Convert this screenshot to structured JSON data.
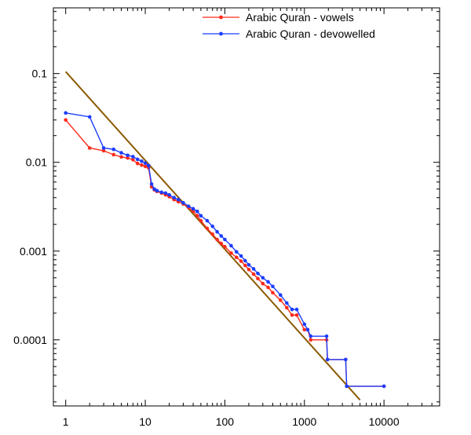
{
  "chart_data": {
    "type": "line",
    "title": "",
    "xlabel": "",
    "ylabel": "",
    "x_scale": "log",
    "y_scale": "log",
    "xlim": [
      0.7,
      50000
    ],
    "ylim": [
      1.8e-05,
      0.55
    ],
    "x_ticks": [
      {
        "value": 1,
        "label": "1"
      },
      {
        "value": 10,
        "label": "10"
      },
      {
        "value": 100,
        "label": "100"
      },
      {
        "value": 1000,
        "label": "1000"
      },
      {
        "value": 10000,
        "label": "10000"
      }
    ],
    "y_ticks": [
      {
        "value": 0.1,
        "label": "0.1"
      },
      {
        "value": 0.01,
        "label": "0.01"
      },
      {
        "value": 0.001,
        "label": "0.001"
      },
      {
        "value": 0.0001,
        "label": "0.0001"
      }
    ],
    "grid": false,
    "legend_position": "top-right",
    "series": [
      {
        "name": "Arabic Quran - vowels",
        "color": "#ff2a1a",
        "marker": "dot",
        "points": [
          [
            1,
            0.03
          ],
          [
            2,
            0.0145
          ],
          [
            3,
            0.0135
          ],
          [
            4,
            0.0122
          ],
          [
            5,
            0.0115
          ],
          [
            6,
            0.0112
          ],
          [
            7,
            0.0107
          ],
          [
            8,
            0.0097
          ],
          [
            9,
            0.0093
          ],
          [
            10,
            0.009
          ],
          [
            11,
            0.0087
          ],
          [
            12,
            0.0053
          ],
          [
            13,
            0.0049
          ],
          [
            14,
            0.0047
          ],
          [
            16,
            0.0045
          ],
          [
            18,
            0.0043
          ],
          [
            20,
            0.0041
          ],
          [
            23,
            0.0038
          ],
          [
            26,
            0.0036
          ],
          [
            30,
            0.0034
          ],
          [
            35,
            0.0031
          ],
          [
            40,
            0.0028
          ],
          [
            45,
            0.0025
          ],
          [
            50,
            0.0022
          ],
          [
            60,
            0.0018
          ],
          [
            70,
            0.00155
          ],
          [
            80,
            0.00135
          ],
          [
            90,
            0.00122
          ],
          [
            100,
            0.00112
          ],
          [
            120,
            0.00095
          ],
          [
            140,
            0.00085
          ],
          [
            160,
            0.00077
          ],
          [
            180,
            0.00069
          ],
          [
            200,
            0.00062
          ],
          [
            230,
            0.00055
          ],
          [
            260,
            0.00049
          ],
          [
            300,
            0.00043
          ],
          [
            350,
            0.00039
          ],
          [
            400,
            0.00034
          ],
          [
            500,
            0.00028
          ],
          [
            600,
            0.00023
          ],
          [
            700,
            0.00019
          ],
          [
            800,
            0.00019
          ],
          [
            1000,
            0.00013
          ],
          [
            1100,
            0.00013
          ],
          [
            1200,
            0.0001
          ],
          [
            1900,
            0.0001
          ],
          [
            1950,
            6e-05
          ],
          [
            3300,
            6e-05
          ],
          [
            3400,
            3e-05
          ],
          [
            10000,
            3e-05
          ]
        ]
      },
      {
        "name": "Arabic Quran - devowelled",
        "color": "#1c3cff",
        "marker": "dot",
        "points": [
          [
            1,
            0.036
          ],
          [
            2,
            0.0325
          ],
          [
            3,
            0.0145
          ],
          [
            4,
            0.014
          ],
          [
            5,
            0.0128
          ],
          [
            6,
            0.012
          ],
          [
            7,
            0.0116
          ],
          [
            8,
            0.0108
          ],
          [
            9,
            0.0103
          ],
          [
            10,
            0.0098
          ],
          [
            11,
            0.0092
          ],
          [
            12,
            0.0057
          ],
          [
            13,
            0.005
          ],
          [
            14,
            0.0048
          ],
          [
            16,
            0.0046
          ],
          [
            18,
            0.0045
          ],
          [
            20,
            0.0043
          ],
          [
            23,
            0.004
          ],
          [
            26,
            0.0038
          ],
          [
            30,
            0.0035
          ],
          [
            35,
            0.0032
          ],
          [
            40,
            0.003
          ],
          [
            45,
            0.0028
          ],
          [
            50,
            0.0025
          ],
          [
            60,
            0.0022
          ],
          [
            70,
            0.0019
          ],
          [
            80,
            0.00165
          ],
          [
            90,
            0.00148
          ],
          [
            100,
            0.00135
          ],
          [
            120,
            0.00115
          ],
          [
            140,
            0.00098
          ],
          [
            160,
            0.00088
          ],
          [
            180,
            0.00078
          ],
          [
            200,
            0.0007
          ],
          [
            230,
            0.00063
          ],
          [
            260,
            0.00056
          ],
          [
            300,
            0.0005
          ],
          [
            350,
            0.00045
          ],
          [
            400,
            0.0004
          ],
          [
            500,
            0.00032
          ],
          [
            600,
            0.00026
          ],
          [
            700,
            0.00022
          ],
          [
            800,
            0.00022
          ],
          [
            1000,
            0.00015
          ],
          [
            1100,
            0.00013
          ],
          [
            1200,
            0.00011
          ],
          [
            1900,
            0.00011
          ],
          [
            1950,
            6e-05
          ],
          [
            3300,
            6e-05
          ],
          [
            3400,
            3e-05
          ],
          [
            10000,
            3e-05
          ]
        ]
      },
      {
        "name": "",
        "color": "#8c5a00",
        "marker": "none",
        "points": [
          [
            1,
            0.105
          ],
          [
            5000,
            2.1e-05
          ]
        ]
      }
    ]
  }
}
